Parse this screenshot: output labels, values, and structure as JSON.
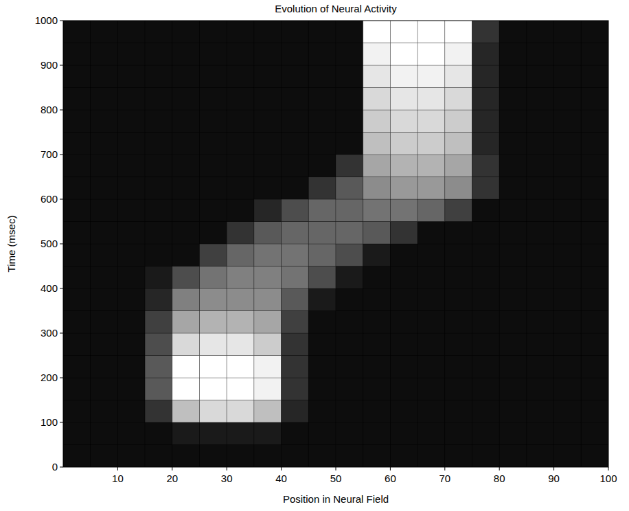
{
  "chart_data": {
    "type": "heatmap",
    "title": "Evolution of Neural Activity",
    "x_label": "Position in Neural Field",
    "y_label": "Time (msec)",
    "xlim": [
      0,
      100
    ],
    "ylim": [
      0,
      1000
    ],
    "xticks": [
      10,
      20,
      30,
      40,
      50,
      60,
      70,
      80,
      90,
      100
    ],
    "yticks": [
      0,
      100,
      200,
      300,
      400,
      500,
      600,
      700,
      800,
      900,
      1000
    ],
    "zlim": [
      0,
      1
    ],
    "x_edges": [
      0,
      5,
      10,
      15,
      20,
      25,
      30,
      35,
      40,
      45,
      50,
      55,
      60,
      65,
      70,
      75,
      80,
      85,
      90,
      95,
      100
    ],
    "y_edges": [
      0,
      50,
      100,
      150,
      200,
      250,
      300,
      350,
      400,
      450,
      500,
      550,
      600,
      650,
      700,
      750,
      800,
      850,
      900,
      950,
      1000
    ],
    "cells": [
      [
        0.05,
        0.05,
        0.05,
        0.05,
        0.05,
        0.05,
        0.05,
        0.05,
        0.05,
        0.05,
        0.05,
        0.05,
        0.05,
        0.05,
        0.05,
        0.05,
        0.05,
        0.05,
        0.05,
        0.05
      ],
      [
        0.05,
        0.05,
        0.05,
        0.05,
        0.1,
        0.1,
        0.1,
        0.1,
        0.05,
        0.05,
        0.05,
        0.05,
        0.05,
        0.05,
        0.05,
        0.05,
        0.05,
        0.05,
        0.05,
        0.05
      ],
      [
        0.05,
        0.05,
        0.05,
        0.2,
        0.75,
        0.85,
        0.85,
        0.75,
        0.15,
        0.05,
        0.05,
        0.05,
        0.05,
        0.05,
        0.05,
        0.05,
        0.05,
        0.05,
        0.05,
        0.05
      ],
      [
        0.05,
        0.05,
        0.05,
        0.35,
        1,
        1,
        1,
        0.95,
        0.2,
        0.05,
        0.05,
        0.05,
        0.05,
        0.05,
        0.05,
        0.05,
        0.05,
        0.05,
        0.05,
        0.05
      ],
      [
        0.05,
        0.05,
        0.05,
        0.35,
        1,
        1,
        1,
        0.95,
        0.2,
        0.05,
        0.05,
        0.05,
        0.05,
        0.05,
        0.05,
        0.05,
        0.05,
        0.05,
        0.05,
        0.05
      ],
      [
        0.05,
        0.05,
        0.05,
        0.3,
        0.85,
        0.9,
        0.9,
        0.8,
        0.2,
        0.05,
        0.05,
        0.05,
        0.05,
        0.05,
        0.05,
        0.05,
        0.05,
        0.05,
        0.05,
        0.05
      ],
      [
        0.05,
        0.05,
        0.05,
        0.25,
        0.65,
        0.7,
        0.7,
        0.65,
        0.25,
        0.05,
        0.05,
        0.05,
        0.05,
        0.05,
        0.05,
        0.05,
        0.05,
        0.05,
        0.05,
        0.05
      ],
      [
        0.05,
        0.05,
        0.05,
        0.15,
        0.5,
        0.55,
        0.55,
        0.55,
        0.35,
        0.1,
        0.05,
        0.05,
        0.05,
        0.05,
        0.05,
        0.05,
        0.05,
        0.05,
        0.05,
        0.05
      ],
      [
        0.05,
        0.05,
        0.05,
        0.1,
        0.3,
        0.45,
        0.5,
        0.5,
        0.45,
        0.3,
        0.1,
        0.05,
        0.05,
        0.05,
        0.05,
        0.05,
        0.05,
        0.05,
        0.05,
        0.05
      ],
      [
        0.05,
        0.05,
        0.05,
        0.05,
        0.05,
        0.25,
        0.4,
        0.45,
        0.45,
        0.4,
        0.3,
        0.1,
        0.05,
        0.05,
        0.05,
        0.05,
        0.05,
        0.05,
        0.05,
        0.05
      ],
      [
        0.05,
        0.05,
        0.05,
        0.05,
        0.05,
        0.05,
        0.2,
        0.35,
        0.4,
        0.4,
        0.4,
        0.35,
        0.2,
        0.05,
        0.05,
        0.05,
        0.05,
        0.05,
        0.05,
        0.05
      ],
      [
        0.05,
        0.05,
        0.05,
        0.05,
        0.05,
        0.05,
        0.05,
        0.15,
        0.3,
        0.4,
        0.4,
        0.45,
        0.45,
        0.4,
        0.25,
        0.05,
        0.05,
        0.05,
        0.05,
        0.05
      ],
      [
        0.05,
        0.05,
        0.05,
        0.05,
        0.05,
        0.05,
        0.05,
        0.05,
        0.05,
        0.2,
        0.35,
        0.55,
        0.6,
        0.6,
        0.55,
        0.2,
        0.05,
        0.05,
        0.05,
        0.05
      ],
      [
        0.05,
        0.05,
        0.05,
        0.05,
        0.05,
        0.05,
        0.05,
        0.05,
        0.05,
        0.05,
        0.2,
        0.65,
        0.7,
        0.7,
        0.65,
        0.2,
        0.05,
        0.05,
        0.05,
        0.05
      ],
      [
        0.05,
        0.05,
        0.05,
        0.05,
        0.05,
        0.05,
        0.05,
        0.05,
        0.05,
        0.05,
        0.05,
        0.75,
        0.8,
        0.8,
        0.75,
        0.15,
        0.05,
        0.05,
        0.05,
        0.05
      ],
      [
        0.05,
        0.05,
        0.05,
        0.05,
        0.05,
        0.05,
        0.05,
        0.05,
        0.05,
        0.05,
        0.05,
        0.8,
        0.85,
        0.85,
        0.8,
        0.15,
        0.05,
        0.05,
        0.05,
        0.05
      ],
      [
        0.05,
        0.05,
        0.05,
        0.05,
        0.05,
        0.05,
        0.05,
        0.05,
        0.05,
        0.05,
        0.05,
        0.85,
        0.9,
        0.9,
        0.85,
        0.15,
        0.05,
        0.05,
        0.05,
        0.05
      ],
      [
        0.05,
        0.05,
        0.05,
        0.05,
        0.05,
        0.05,
        0.05,
        0.05,
        0.05,
        0.05,
        0.05,
        0.9,
        0.95,
        0.95,
        0.9,
        0.15,
        0.05,
        0.05,
        0.05,
        0.05
      ],
      [
        0.05,
        0.05,
        0.05,
        0.05,
        0.05,
        0.05,
        0.05,
        0.05,
        0.05,
        0.05,
        0.05,
        0.95,
        1,
        1,
        0.95,
        0.15,
        0.05,
        0.05,
        0.05,
        0.05
      ],
      [
        0.05,
        0.05,
        0.05,
        0.05,
        0.05,
        0.05,
        0.05,
        0.05,
        0.05,
        0.05,
        0.05,
        1,
        1,
        1,
        1,
        0.2,
        0.05,
        0.05,
        0.05,
        0.05
      ]
    ]
  }
}
